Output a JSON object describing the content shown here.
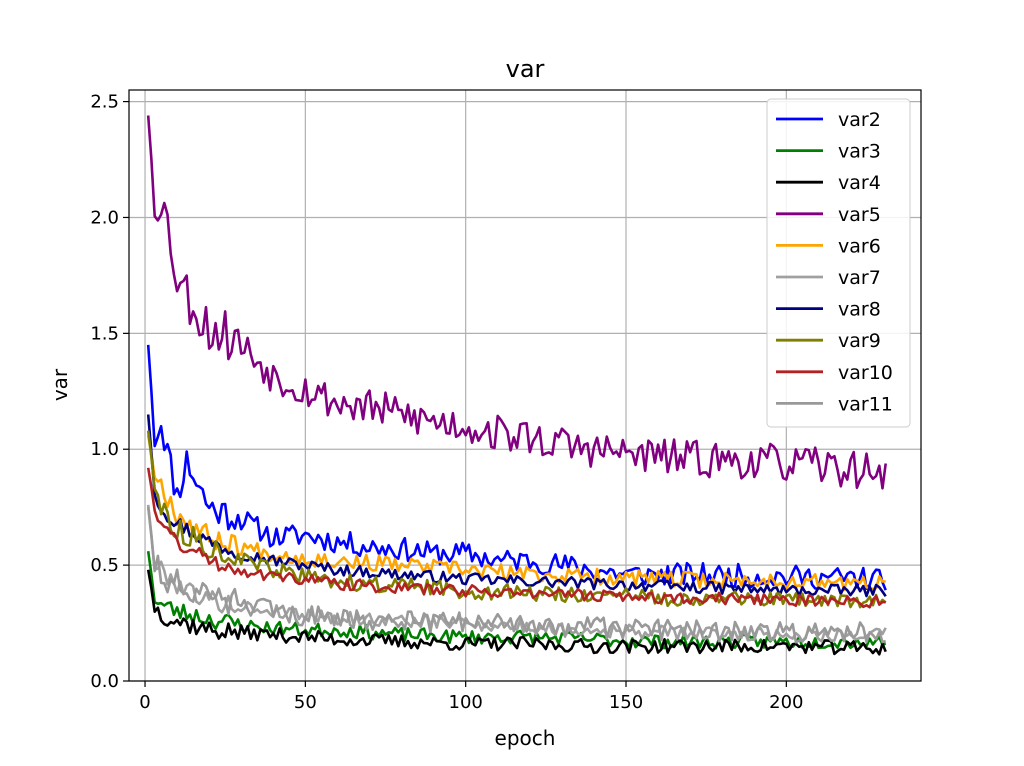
{
  "chart_data": {
    "type": "line",
    "title": "var",
    "xlabel": "epoch",
    "ylabel": "var",
    "xlim": [
      -5,
      242
    ],
    "ylim": [
      0,
      2.55
    ],
    "xticks": [
      0,
      50,
      100,
      150,
      200
    ],
    "yticks": [
      0.0,
      0.5,
      1.0,
      1.5,
      2.0,
      2.5
    ],
    "xtick_labels": [
      "0",
      "50",
      "100",
      "150",
      "200"
    ],
    "ytick_labels": [
      "0.0",
      "0.5",
      "1.0",
      "1.5",
      "2.0",
      "2.5"
    ],
    "grid": true,
    "legend_position": "top-right",
    "epochs": {
      "start": 1,
      "end": 231
    },
    "series": [
      {
        "name": "var2",
        "color": "#0000ff",
        "seed": 11,
        "noise": 0.1,
        "anchors": [
          [
            1,
            1.45
          ],
          [
            3,
            1.05
          ],
          [
            5,
            1.12
          ],
          [
            10,
            0.8
          ],
          [
            13,
            0.95
          ],
          [
            20,
            0.75
          ],
          [
            30,
            0.7
          ],
          [
            40,
            0.62
          ],
          [
            50,
            0.63
          ],
          [
            60,
            0.6
          ],
          [
            70,
            0.58
          ],
          [
            80,
            0.57
          ],
          [
            90,
            0.55
          ],
          [
            100,
            0.55
          ],
          [
            110,
            0.52
          ],
          [
            120,
            0.52
          ],
          [
            130,
            0.5
          ],
          [
            140,
            0.48
          ],
          [
            150,
            0.46
          ],
          [
            170,
            0.46
          ],
          [
            200,
            0.45
          ],
          [
            231,
            0.44
          ]
        ]
      },
      {
        "name": "var3",
        "color": "#008000",
        "seed": 23,
        "noise": 0.06,
        "anchors": [
          [
            1,
            0.56
          ],
          [
            3,
            0.36
          ],
          [
            5,
            0.33
          ],
          [
            10,
            0.3
          ],
          [
            20,
            0.27
          ],
          [
            30,
            0.24
          ],
          [
            40,
            0.23
          ],
          [
            50,
            0.22
          ],
          [
            60,
            0.22
          ],
          [
            80,
            0.2
          ],
          [
            100,
            0.19
          ],
          [
            120,
            0.19
          ],
          [
            140,
            0.18
          ],
          [
            160,
            0.17
          ],
          [
            200,
            0.17
          ],
          [
            231,
            0.17
          ]
        ]
      },
      {
        "name": "var4",
        "color": "#000000",
        "seed": 37,
        "noise": 0.06,
        "anchors": [
          [
            1,
            0.48
          ],
          [
            3,
            0.32
          ],
          [
            5,
            0.29
          ],
          [
            10,
            0.26
          ],
          [
            20,
            0.22
          ],
          [
            30,
            0.21
          ],
          [
            40,
            0.2
          ],
          [
            50,
            0.19
          ],
          [
            60,
            0.18
          ],
          [
            80,
            0.17
          ],
          [
            100,
            0.16
          ],
          [
            120,
            0.16
          ],
          [
            140,
            0.15
          ],
          [
            160,
            0.15
          ],
          [
            200,
            0.15
          ],
          [
            231,
            0.14
          ]
        ]
      },
      {
        "name": "var5",
        "color": "#800080",
        "seed": 53,
        "noise": 0.16,
        "anchors": [
          [
            1,
            2.44
          ],
          [
            3,
            2.06
          ],
          [
            5,
            2.1
          ],
          [
            8,
            1.9
          ],
          [
            10,
            1.75
          ],
          [
            15,
            1.62
          ],
          [
            20,
            1.52
          ],
          [
            25,
            1.5
          ],
          [
            30,
            1.45
          ],
          [
            40,
            1.32
          ],
          [
            50,
            1.26
          ],
          [
            60,
            1.2
          ],
          [
            70,
            1.18
          ],
          [
            80,
            1.15
          ],
          [
            90,
            1.12
          ],
          [
            100,
            1.1
          ],
          [
            110,
            1.07
          ],
          [
            120,
            1.05
          ],
          [
            130,
            1.02
          ],
          [
            140,
            1.0
          ],
          [
            150,
            0.98
          ],
          [
            170,
            0.96
          ],
          [
            200,
            0.94
          ],
          [
            231,
            0.9
          ]
        ]
      },
      {
        "name": "var6",
        "color": "#ffa500",
        "seed": 67,
        "noise": 0.07,
        "anchors": [
          [
            1,
            1.06
          ],
          [
            3,
            0.9
          ],
          [
            5,
            0.85
          ],
          [
            10,
            0.72
          ],
          [
            20,
            0.62
          ],
          [
            30,
            0.58
          ],
          [
            40,
            0.55
          ],
          [
            50,
            0.53
          ],
          [
            60,
            0.52
          ],
          [
            80,
            0.5
          ],
          [
            100,
            0.48
          ],
          [
            120,
            0.46
          ],
          [
            140,
            0.45
          ],
          [
            160,
            0.44
          ],
          [
            200,
            0.43
          ],
          [
            231,
            0.42
          ]
        ]
      },
      {
        "name": "var7",
        "color": "#a0a0a0",
        "seed": 79,
        "noise": 0.06,
        "anchors": [
          [
            1,
            0.76
          ],
          [
            3,
            0.5
          ],
          [
            5,
            0.48
          ],
          [
            10,
            0.42
          ],
          [
            20,
            0.35
          ],
          [
            30,
            0.32
          ],
          [
            40,
            0.3
          ],
          [
            50,
            0.29
          ],
          [
            60,
            0.27
          ],
          [
            80,
            0.26
          ],
          [
            100,
            0.25
          ],
          [
            120,
            0.23
          ],
          [
            140,
            0.22
          ],
          [
            160,
            0.21
          ],
          [
            200,
            0.2
          ],
          [
            231,
            0.2
          ]
        ]
      },
      {
        "name": "var8",
        "color": "#000080",
        "seed": 97,
        "noise": 0.05,
        "anchors": [
          [
            1,
            1.15
          ],
          [
            3,
            0.82
          ],
          [
            5,
            0.75
          ],
          [
            10,
            0.68
          ],
          [
            20,
            0.6
          ],
          [
            30,
            0.55
          ],
          [
            40,
            0.52
          ],
          [
            50,
            0.5
          ],
          [
            60,
            0.48
          ],
          [
            80,
            0.46
          ],
          [
            100,
            0.44
          ],
          [
            120,
            0.43
          ],
          [
            140,
            0.42
          ],
          [
            160,
            0.41
          ],
          [
            200,
            0.39
          ],
          [
            231,
            0.39
          ]
        ]
      },
      {
        "name": "var9",
        "color": "#808000",
        "seed": 113,
        "noise": 0.07,
        "anchors": [
          [
            1,
            1.08
          ],
          [
            3,
            0.85
          ],
          [
            5,
            0.75
          ],
          [
            10,
            0.65
          ],
          [
            20,
            0.58
          ],
          [
            30,
            0.52
          ],
          [
            40,
            0.48
          ],
          [
            50,
            0.45
          ],
          [
            60,
            0.43
          ],
          [
            80,
            0.41
          ],
          [
            100,
            0.39
          ],
          [
            120,
            0.38
          ],
          [
            140,
            0.37
          ],
          [
            160,
            0.36
          ],
          [
            200,
            0.35
          ],
          [
            231,
            0.34
          ]
        ]
      },
      {
        "name": "var10",
        "color": "#b22222",
        "seed": 131,
        "noise": 0.05,
        "anchors": [
          [
            1,
            0.92
          ],
          [
            3,
            0.75
          ],
          [
            5,
            0.68
          ],
          [
            10,
            0.6
          ],
          [
            20,
            0.52
          ],
          [
            30,
            0.48
          ],
          [
            40,
            0.45
          ],
          [
            50,
            0.44
          ],
          [
            60,
            0.42
          ],
          [
            80,
            0.4
          ],
          [
            100,
            0.39
          ],
          [
            120,
            0.38
          ],
          [
            140,
            0.37
          ],
          [
            160,
            0.36
          ],
          [
            200,
            0.35
          ],
          [
            231,
            0.34
          ]
        ]
      },
      {
        "name": "var11",
        "color": "#999999",
        "seed": 151,
        "noise": 0.09,
        "anchors": [
          [
            1,
            0.75
          ],
          [
            3,
            0.5
          ],
          [
            5,
            0.46
          ],
          [
            10,
            0.42
          ],
          [
            20,
            0.36
          ],
          [
            30,
            0.33
          ],
          [
            40,
            0.3
          ],
          [
            50,
            0.28
          ],
          [
            60,
            0.27
          ],
          [
            80,
            0.26
          ],
          [
            100,
            0.25
          ],
          [
            120,
            0.24
          ],
          [
            140,
            0.23
          ],
          [
            160,
            0.22
          ],
          [
            200,
            0.21
          ],
          [
            231,
            0.21
          ]
        ]
      }
    ]
  }
}
